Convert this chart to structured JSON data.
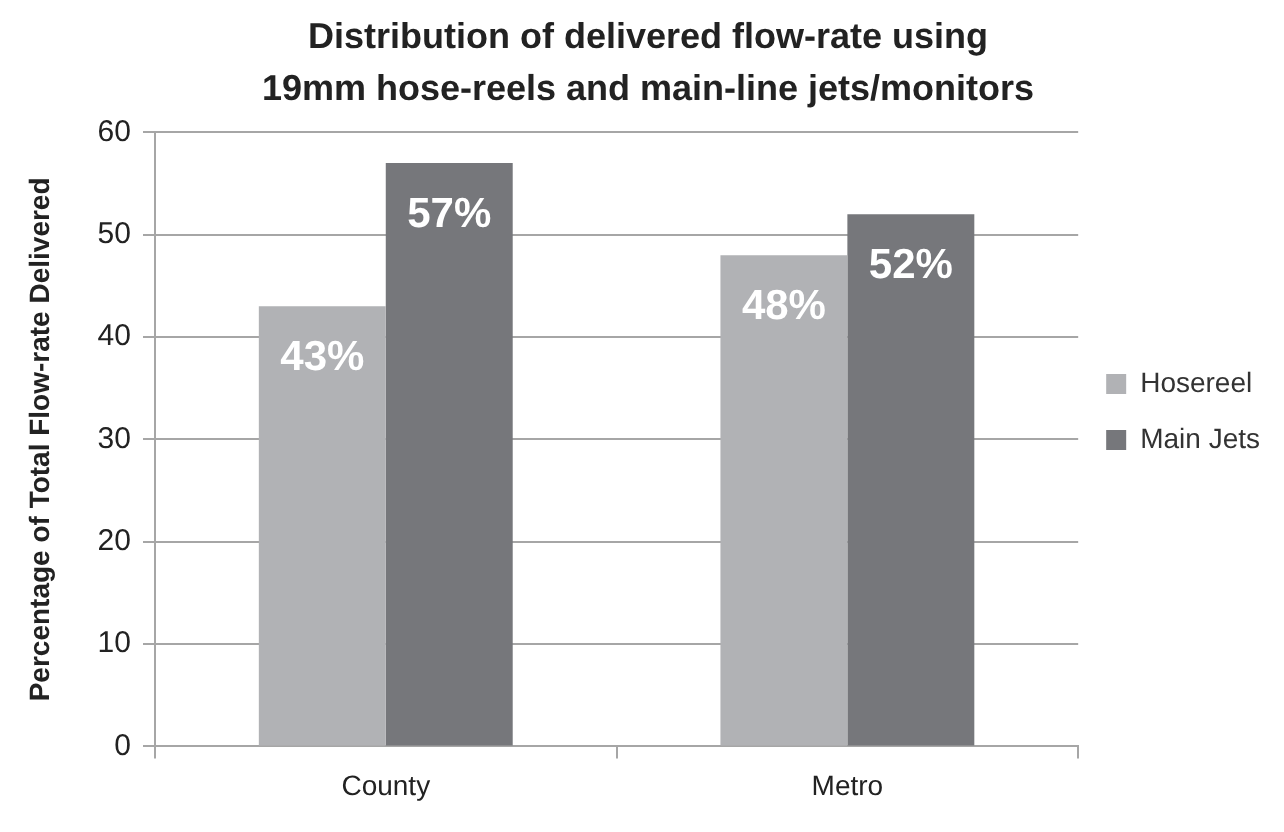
{
  "chart_data": {
    "type": "bar",
    "title": "Distribution of delivered flow-rate using 19mm hose-reels and main-line jets/monitors",
    "ylabel": "Percentage of Total Flow-rate Delivered",
    "categories": [
      "County",
      "Metro"
    ],
    "series": [
      {
        "name": "Hosereel",
        "color": "#b1b2b5",
        "values": [
          43,
          48
        ],
        "value_labels": [
          "43%",
          "48%"
        ]
      },
      {
        "name": "Main Jets",
        "color": "#76777b",
        "values": [
          57,
          52
        ],
        "value_labels": [
          "57%",
          "52%"
        ]
      }
    ],
    "ylim": [
      0,
      60
    ],
    "yticks": [
      0,
      10,
      20,
      30,
      40,
      50,
      60
    ],
    "grid": "y",
    "legend": "right"
  }
}
